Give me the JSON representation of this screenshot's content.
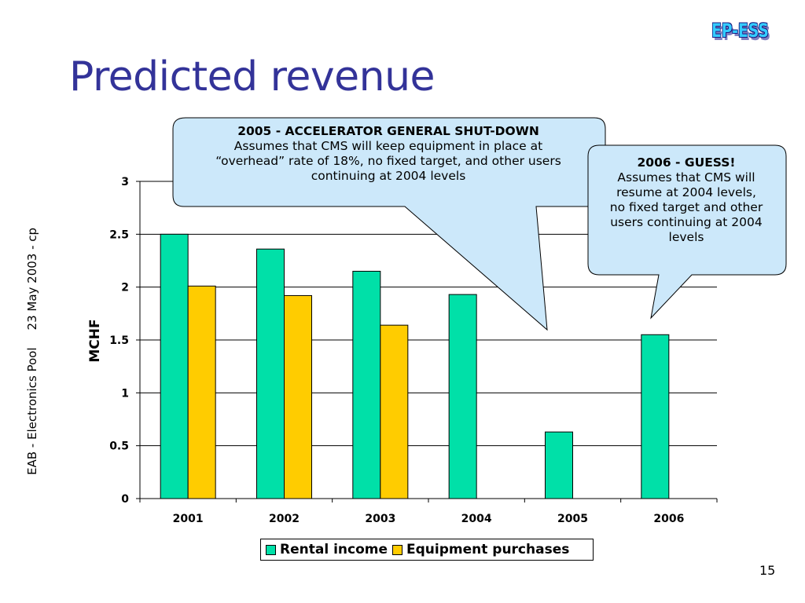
{
  "slide": {
    "title": "Predicted revenue",
    "logo": "EP-ESS",
    "side_label_left": "EAB - Electronics Pool",
    "side_label_right": "23 May 2003 - cp",
    "page_number": "15"
  },
  "callouts": {
    "c2005": {
      "heading": "2005 - ACCELERATOR GENERAL SHUT-DOWN",
      "line1": "Assumes that CMS will keep equipment in place at",
      "line2": "“overhead” rate of 18%, no fixed target, and other users",
      "line3": "continuing at 2004 levels"
    },
    "c2006": {
      "heading": "2006 - GUESS!",
      "line1": "Assumes that CMS will",
      "line2": "resume at 2004 levels,",
      "line3": "no fixed target and other",
      "line4": "users continuing at 2004",
      "line5": "levels"
    }
  },
  "colors": {
    "rental": "#00e0a8",
    "equipment": "#ffcc00",
    "title": "#333399",
    "callout_fill": "#cce8fa"
  },
  "chart_data": {
    "type": "bar",
    "categories": [
      "2001",
      "2002",
      "2003",
      "2004",
      "2005",
      "2006"
    ],
    "series": [
      {
        "name": "Rental income",
        "values": [
          2.5,
          2.36,
          2.15,
          1.93,
          0.63,
          1.55
        ]
      },
      {
        "name": "Equipment purchases",
        "values": [
          2.01,
          1.92,
          1.64,
          null,
          null,
          null
        ]
      }
    ],
    "ylabel": "MCHF",
    "xlabel": "",
    "ylim": [
      0,
      3
    ],
    "yticks": [
      "0",
      "0.5",
      "1",
      "1.5",
      "2",
      "2.5",
      "3"
    ],
    "grid": true,
    "legend": "bottom"
  }
}
